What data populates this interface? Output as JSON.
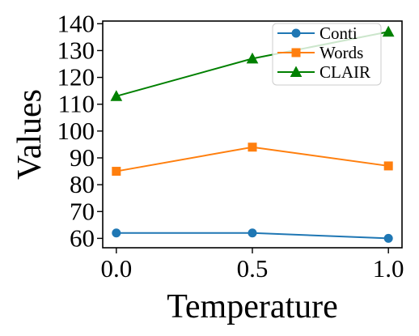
{
  "chart_data": {
    "type": "line",
    "title": "",
    "xlabel": "Temperature",
    "ylabel": "Values",
    "x": [
      0.0,
      0.5,
      1.0
    ],
    "x_tick_labels": [
      "0.0",
      "0.5",
      "1.0"
    ],
    "y_ticks": [
      60,
      70,
      80,
      90,
      100,
      110,
      120,
      130,
      140
    ],
    "xlim": [
      -0.05,
      1.05
    ],
    "ylim": [
      56.5,
      141
    ],
    "grid": false,
    "legend_position": "top-right",
    "series": [
      {
        "name": "Conti",
        "values": [
          62,
          62,
          60
        ],
        "color": "#1f77b4",
        "marker": "circle"
      },
      {
        "name": "Words",
        "values": [
          85,
          94,
          87
        ],
        "color": "#ff7f0e",
        "marker": "square"
      },
      {
        "name": "CLAIR",
        "values": [
          113,
          127,
          137
        ],
        "color": "#008000",
        "marker": "triangle"
      }
    ]
  }
}
